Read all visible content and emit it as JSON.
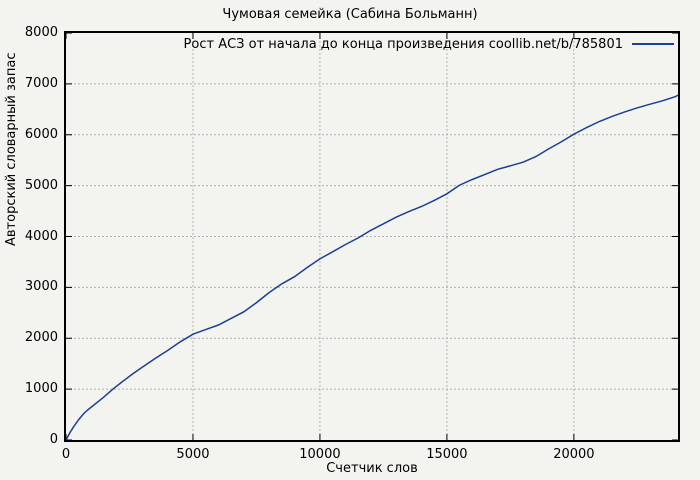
{
  "chart_data": {
    "type": "line",
    "title": "Чумовая семейка (Сабина Больманн)",
    "xlabel": "Счетчик слов",
    "ylabel": "Авторский словарный запас",
    "xlim": [
      0,
      24100
    ],
    "ylim": [
      0,
      8000
    ],
    "x_ticks": [
      0,
      5000,
      10000,
      15000,
      20000
    ],
    "y_ticks": [
      0,
      1000,
      2000,
      3000,
      4000,
      5000,
      6000,
      7000,
      8000
    ],
    "grid": true,
    "legend_position": "top-right-inside",
    "series": [
      {
        "name": "Рост АСЗ от начала до конца произведения coollib.net/b/785801",
        "color": "#1a4191",
        "points": [
          [
            0,
            0
          ],
          [
            150,
            140
          ],
          [
            300,
            260
          ],
          [
            500,
            400
          ],
          [
            700,
            520
          ],
          [
            900,
            610
          ],
          [
            1200,
            730
          ],
          [
            1500,
            850
          ],
          [
            1850,
            1000
          ],
          [
            2200,
            1140
          ],
          [
            2600,
            1290
          ],
          [
            3000,
            1430
          ],
          [
            3500,
            1600
          ],
          [
            4000,
            1760
          ],
          [
            4500,
            1930
          ],
          [
            5000,
            2080
          ],
          [
            5500,
            2170
          ],
          [
            6000,
            2260
          ],
          [
            6500,
            2390
          ],
          [
            7000,
            2520
          ],
          [
            7500,
            2700
          ],
          [
            8000,
            2900
          ],
          [
            8500,
            3070
          ],
          [
            9000,
            3210
          ],
          [
            9500,
            3390
          ],
          [
            10000,
            3560
          ],
          [
            10500,
            3700
          ],
          [
            11000,
            3840
          ],
          [
            11500,
            3970
          ],
          [
            12000,
            4120
          ],
          [
            12500,
            4250
          ],
          [
            13000,
            4380
          ],
          [
            13500,
            4490
          ],
          [
            14000,
            4590
          ],
          [
            14500,
            4710
          ],
          [
            15000,
            4840
          ],
          [
            15500,
            5010
          ],
          [
            16000,
            5120
          ],
          [
            16500,
            5220
          ],
          [
            17000,
            5320
          ],
          [
            17500,
            5390
          ],
          [
            18000,
            5460
          ],
          [
            18500,
            5570
          ],
          [
            19000,
            5720
          ],
          [
            19500,
            5860
          ],
          [
            20000,
            6010
          ],
          [
            20500,
            6140
          ],
          [
            21000,
            6260
          ],
          [
            21500,
            6360
          ],
          [
            22000,
            6450
          ],
          [
            22500,
            6530
          ],
          [
            23000,
            6600
          ],
          [
            23500,
            6670
          ],
          [
            24000,
            6750
          ],
          [
            24100,
            6780
          ]
        ]
      }
    ]
  },
  "colors": {
    "background": "#f3f3f0",
    "grid": "#b0b0b0",
    "axis": "#000000",
    "text": "#000000"
  }
}
